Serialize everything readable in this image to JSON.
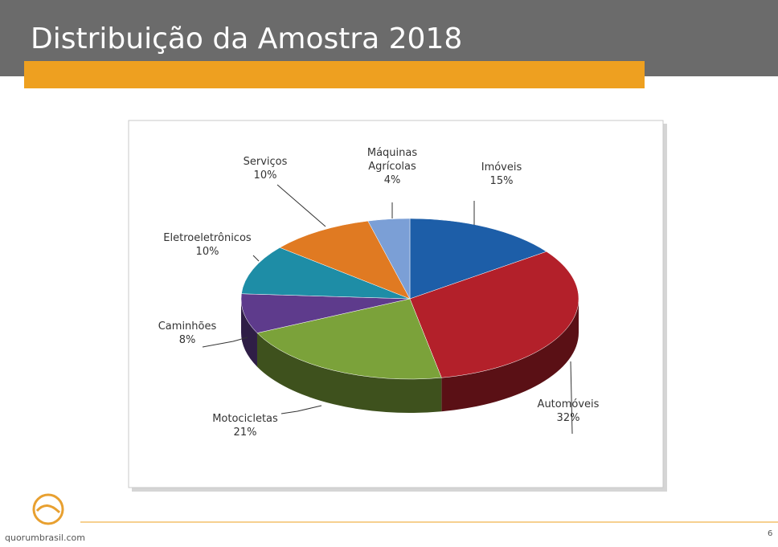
{
  "chart_data": {
    "type": "pie",
    "title": "Distribuição da Amostra 2018",
    "categories": [
      "Imóveis",
      "Automóveis",
      "Motocicletas",
      "Caminhões",
      "Eletroeletrônicos",
      "Serviços",
      "Máquinas Agrícolas"
    ],
    "values": [
      15,
      32,
      21,
      8,
      10,
      10,
      4
    ],
    "value_labels": [
      "15%",
      "32%",
      "21%",
      "8%",
      "10%",
      "10%",
      "4%"
    ],
    "colors": [
      "#1d5ea8",
      "#b3202a",
      "#7ba23a",
      "#5e3b8c",
      "#1e8da6",
      "#e07a22",
      "#7b9fd6"
    ]
  },
  "footer": {
    "site": "quorumbrasil.com",
    "page": "6"
  }
}
